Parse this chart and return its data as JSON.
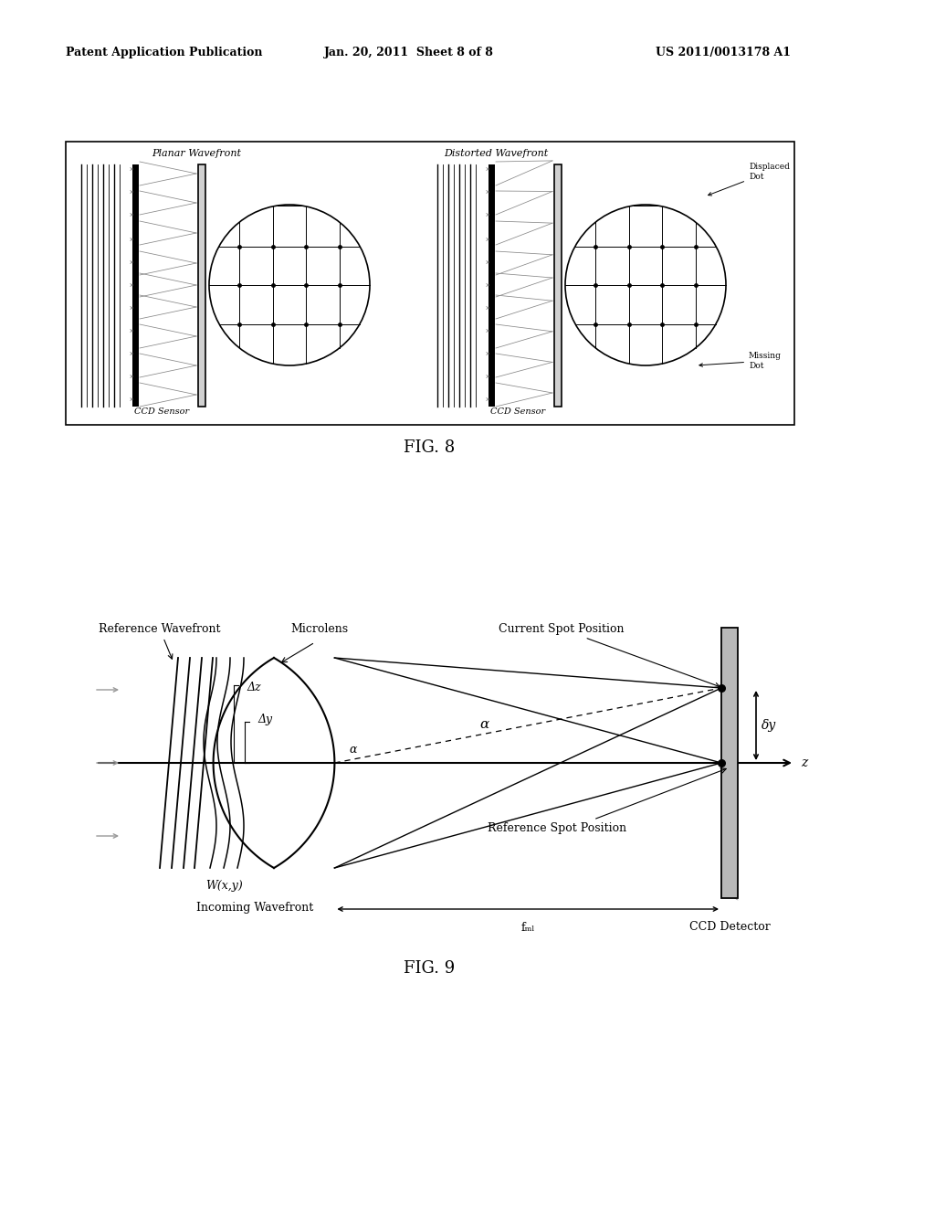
{
  "header_left": "Patent Application Publication",
  "header_center": "Jan. 20, 2011  Sheet 8 of 8",
  "header_right": "US 2011/0013178 A1",
  "fig8_label": "FIG. 8",
  "fig9_label": "FIG. 9",
  "fig8_label_planar": "Planar Wavefront",
  "fig8_label_distorted": "Distorted Wavefront",
  "fig8_label_ccd1": "CCD Sensor",
  "fig8_label_ccd2": "CCD Sensor",
  "fig8_label_displaced": "Displaced\nDot",
  "fig8_label_missing": "Missing\nDot",
  "fig9_label_refwave": "Reference Wavefront",
  "fig9_label_microlens": "Microlens",
  "fig9_label_dz": "Δz",
  "fig9_label_dy": "Δy",
  "fig9_label_alpha": "α",
  "fig9_label_wy": "W(x,y)",
  "fig9_label_incoming": "Incoming Wavefront",
  "fig9_label_fml": "fₘₗ",
  "fig9_label_ccd": "CCD Detector",
  "fig9_label_current": "Current Spot Position",
  "fig9_label_reference": "Reference Spot Position",
  "fig9_label_deltay": "δy",
  "fig9_label_z": "z",
  "background_color": "#ffffff"
}
